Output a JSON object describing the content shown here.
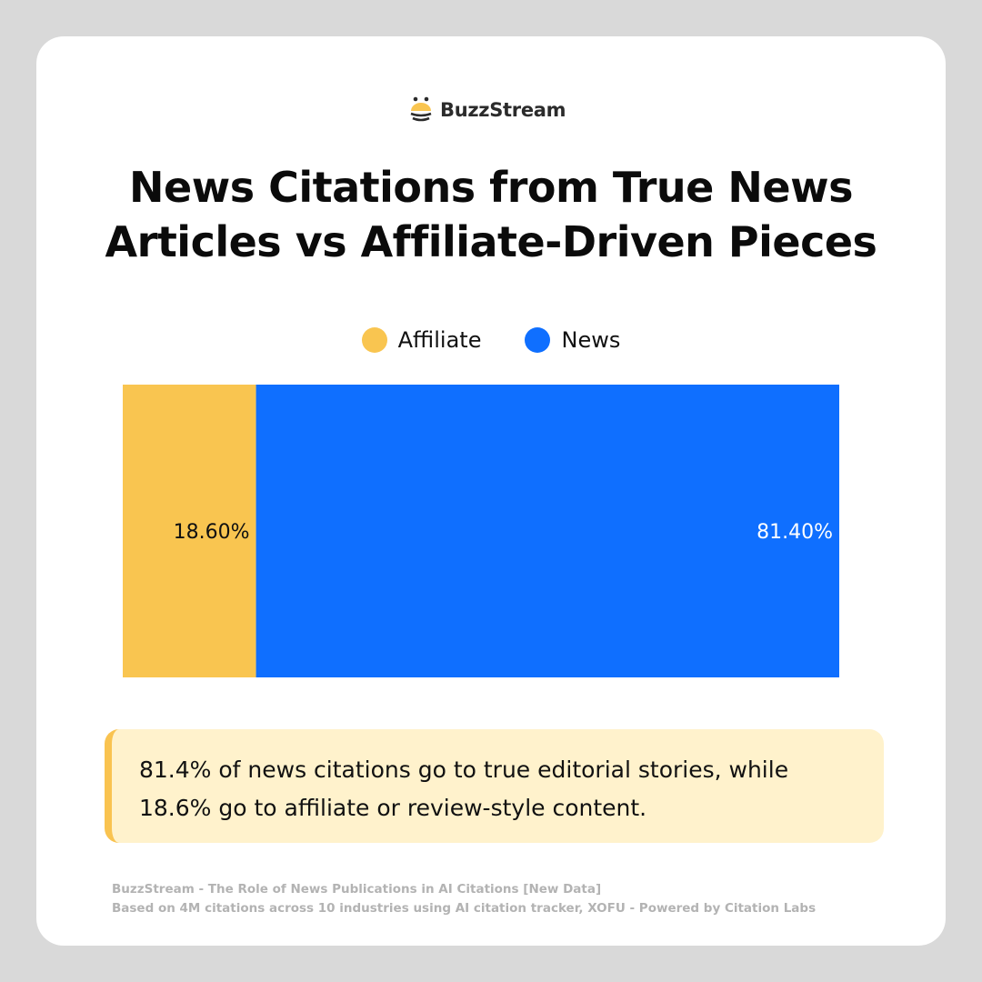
{
  "brand": {
    "name": "BuzzStream",
    "logo_icon": "bee-icon"
  },
  "title_lines": [
    "News Citations from True News",
    "Articles vs Affiliate-Driven Pieces"
  ],
  "chart_data": {
    "type": "bar",
    "orientation": "horizontal-stacked-100",
    "title": "News Citations from True News Articles vs Affiliate-Driven Pieces",
    "categories": [
      ""
    ],
    "series": [
      {
        "name": "Affiliate",
        "values": [
          18.6
        ],
        "label": "18.60%",
        "color": "#f9c550"
      },
      {
        "name": "News",
        "values": [
          81.4
        ],
        "label": "81.40%",
        "color": "#0f6fff"
      }
    ],
    "xlim": [
      0,
      100
    ],
    "legend": "top-center",
    "grid": false
  },
  "callout": {
    "line1": "81.4% of news citations go to true editorial stories, while",
    "line2": "18.6% go to affiliate or review-style content."
  },
  "footer": {
    "line1": "BuzzStream - The Role of News Publications in AI Citations [New Data]",
    "line2": "Based on 4M citations across 10 industries using AI citation tracker, XOFU - Powered by Citation Labs"
  }
}
